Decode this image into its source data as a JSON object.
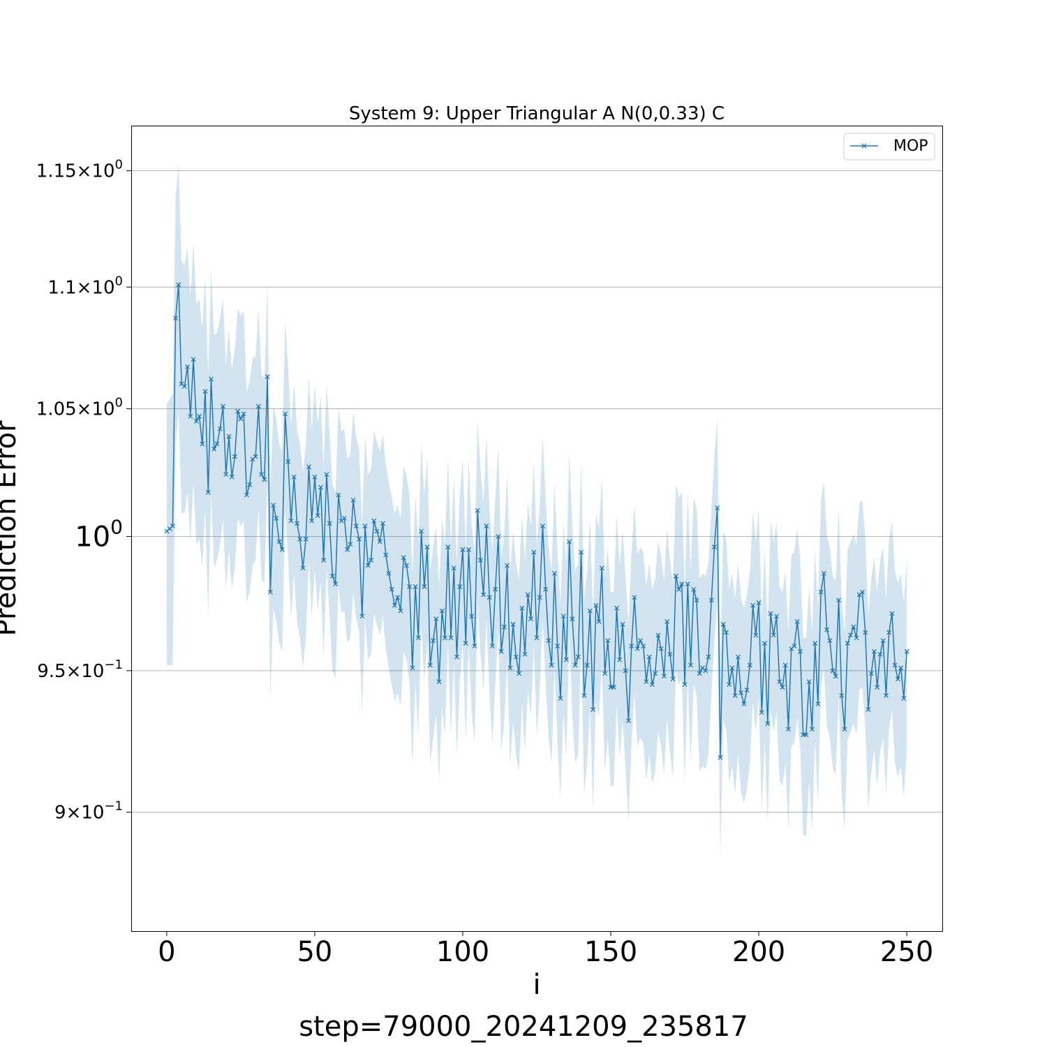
{
  "chart_data": {
    "type": "line",
    "title": "System 9: Upper Triangular A N(0,0.33) C",
    "xlabel": "i",
    "ylabel": "Prediction Error",
    "caption": "step=79000_20241209_235817",
    "yscale": "log",
    "xlim": [
      -12,
      262
    ],
    "ylim": [
      0.86,
      1.17
    ],
    "grid": "y-major",
    "legend": {
      "placement": "top-right",
      "entries": [
        "MOP"
      ]
    },
    "x_ticks": [
      {
        "value": 0,
        "label": "0"
      },
      {
        "value": 50,
        "label": "50"
      },
      {
        "value": 100,
        "label": "100"
      },
      {
        "value": 150,
        "label": "150"
      },
      {
        "value": 200,
        "label": "200"
      },
      {
        "value": 250,
        "label": "250"
      }
    ],
    "y_ticks": [
      {
        "value": 0.9,
        "mantissa": "9",
        "exponent": "−1"
      },
      {
        "value": 0.95,
        "mantissa": "9.5",
        "exponent": "−1"
      },
      {
        "value": 1.0,
        "mantissa": "",
        "exponent": "0"
      },
      {
        "value": 1.05,
        "mantissa": "1.05",
        "exponent": "0"
      },
      {
        "value": 1.1,
        "mantissa": "1.1",
        "exponent": "0"
      },
      {
        "value": 1.15,
        "mantissa": "1.15",
        "exponent": "0"
      }
    ],
    "series": [
      {
        "name": "MOP",
        "color": "#1f77b4",
        "band_color": "#1f77b4",
        "x_start": 0,
        "x_step": 1,
        "values": [
          1.002,
          1.003,
          1.004,
          1.087,
          1.101,
          1.06,
          1.059,
          1.067,
          1.047,
          1.07,
          1.045,
          1.047,
          1.036,
          1.057,
          1.017,
          1.062,
          1.034,
          1.036,
          1.042,
          1.051,
          1.024,
          1.039,
          1.023,
          1.031,
          1.049,
          1.046,
          1.048,
          1.016,
          1.02,
          1.03,
          1.031,
          1.051,
          1.024,
          1.022,
          1.063,
          0.979,
          1.012,
          1.007,
          0.998,
          0.995,
          1.048,
          1.029,
          1.006,
          1.023,
          1.005,
          0.999,
          0.988,
          0.999,
          1.027,
          1.006,
          1.023,
          1.008,
          1.019,
          0.991,
          1.024,
          1.005,
          0.985,
          0.982,
          1.016,
          1.006,
          1.007,
          0.995,
          0.997,
          1.014,
          1.004,
          0.999,
          0.97,
          1.004,
          0.989,
          0.991,
          1.006,
          1.002,
          0.998,
          1.005,
          0.993,
          0.986,
          0.98,
          0.974,
          0.977,
          0.972,
          0.992,
          0.989,
          0.981,
          0.951,
          0.981,
          0.962,
          1.002,
          0.981,
          0.996,
          0.952,
          0.961,
          0.969,
          0.946,
          0.972,
          0.962,
          0.996,
          0.962,
          0.988,
          0.955,
          0.981,
          0.995,
          0.96,
          0.995,
          0.97,
          0.959,
          1.01,
          0.991,
          0.978,
          1.004,
          0.977,
          0.959,
          0.98,
          1.0,
          0.957,
          0.966,
          0.989,
          0.951,
          0.967,
          0.955,
          0.949,
          0.973,
          0.956,
          0.978,
          0.969,
          0.994,
          0.962,
          0.977,
          1.004,
          0.98,
          0.961,
          0.952,
          0.986,
          0.959,
          0.94,
          0.97,
          0.954,
          0.998,
          0.969,
          0.952,
          0.955,
          0.994,
          0.941,
          0.952,
          0.972,
          0.936,
          0.974,
          0.968,
          0.988,
          0.949,
          0.961,
          0.944,
          0.944,
          0.973,
          0.954,
          0.967,
          0.95,
          0.932,
          0.959,
          0.977,
          0.958,
          0.961,
          0.959,
          0.946,
          0.955,
          0.945,
          0.949,
          0.963,
          0.958,
          0.948,
          0.968,
          0.956,
          0.947,
          0.985,
          0.98,
          0.982,
          0.945,
          0.982,
          0.952,
          0.98,
          0.976,
          0.949,
          0.951,
          0.95,
          0.955,
          0.976,
          0.996,
          1.011,
          0.919,
          0.967,
          0.964,
          0.945,
          0.951,
          0.941,
          0.955,
          0.942,
          0.938,
          0.943,
          0.952,
          0.974,
          0.963,
          0.975,
          0.935,
          0.96,
          0.931,
          0.971,
          0.963,
          0.97,
          0.946,
          0.944,
          0.952,
          0.929,
          0.958,
          0.959,
          0.968,
          0.957,
          0.927,
          0.927,
          0.946,
          0.929,
          0.96,
          0.938,
          0.979,
          0.986,
          0.965,
          0.961,
          0.95,
          0.948,
          0.976,
          0.941,
          0.929,
          0.96,
          0.963,
          0.966,
          0.962,
          0.978,
          0.979,
          0.964,
          0.936,
          0.949,
          0.957,
          0.944,
          0.956,
          0.961,
          0.941,
          0.964,
          0.971,
          0.952,
          0.947,
          0.951,
          0.94,
          0.957
        ],
        "band_half_width": [
          0.05,
          0.051,
          0.052,
          0.052,
          0.052,
          0.051,
          0.05,
          0.05,
          0.049,
          0.049,
          0.048,
          0.048,
          0.047,
          0.047,
          0.047,
          0.046,
          0.046,
          0.045,
          0.045,
          0.044,
          0.044,
          0.044,
          0.043,
          0.043,
          0.042,
          0.042,
          0.042,
          0.041,
          0.041,
          0.041,
          0.04,
          0.04,
          0.04,
          0.04,
          0.039,
          0.039,
          0.039,
          0.039,
          0.038,
          0.038,
          0.038,
          0.038,
          0.037,
          0.037,
          0.037,
          0.037,
          0.037,
          0.037,
          0.036,
          0.036,
          0.036,
          0.036,
          0.036,
          0.036,
          0.036,
          0.035,
          0.035,
          0.035,
          0.035,
          0.035,
          0.035,
          0.035,
          0.035,
          0.035,
          0.035,
          0.035,
          0.035,
          0.035,
          0.035,
          0.035,
          0.035,
          0.035,
          0.035,
          0.035,
          0.035,
          0.035,
          0.035,
          0.035,
          0.035,
          0.035,
          0.035,
          0.035,
          0.035,
          0.035,
          0.035,
          0.035,
          0.035,
          0.035,
          0.035,
          0.035,
          0.035,
          0.035,
          0.035,
          0.035,
          0.035,
          0.035,
          0.035,
          0.035,
          0.035,
          0.035,
          0.035,
          0.035,
          0.035,
          0.035,
          0.035,
          0.035,
          0.035,
          0.035,
          0.035,
          0.035,
          0.035,
          0.035,
          0.035,
          0.035,
          0.035,
          0.035,
          0.035,
          0.035,
          0.035,
          0.035,
          0.035,
          0.035,
          0.035,
          0.035,
          0.035,
          0.035,
          0.035,
          0.035,
          0.035,
          0.035,
          0.035,
          0.035,
          0.035,
          0.035,
          0.035,
          0.035,
          0.035,
          0.035,
          0.035,
          0.035,
          0.035,
          0.035,
          0.035,
          0.035,
          0.035,
          0.035,
          0.035,
          0.035,
          0.035,
          0.035,
          0.035,
          0.035,
          0.035,
          0.035,
          0.035,
          0.035,
          0.035,
          0.035,
          0.035,
          0.035,
          0.035,
          0.035,
          0.035,
          0.035,
          0.035,
          0.035,
          0.035,
          0.035,
          0.035,
          0.035,
          0.035,
          0.035,
          0.035,
          0.035,
          0.035,
          0.035,
          0.035,
          0.035,
          0.035,
          0.035,
          0.035,
          0.035,
          0.035,
          0.035,
          0.035,
          0.035,
          0.035,
          0.035,
          0.035,
          0.035,
          0.035,
          0.035,
          0.035,
          0.035,
          0.035,
          0.035,
          0.035,
          0.035,
          0.035,
          0.035,
          0.035,
          0.035,
          0.035,
          0.035,
          0.035,
          0.035,
          0.035,
          0.035,
          0.035,
          0.035,
          0.035,
          0.035,
          0.035,
          0.035,
          0.035,
          0.035,
          0.035,
          0.035,
          0.035,
          0.035,
          0.035,
          0.035,
          0.035,
          0.035,
          0.035,
          0.035,
          0.035,
          0.035,
          0.035,
          0.035,
          0.035,
          0.035,
          0.035,
          0.035,
          0.035,
          0.035,
          0.035,
          0.035,
          0.035,
          0.035,
          0.035,
          0.035,
          0.035,
          0.035,
          0.035,
          0.035,
          0.035,
          0.035,
          0.035,
          0.035,
          0.035,
          0.035,
          0.035,
          0.035,
          0.035,
          0.035,
          0.035
        ]
      }
    ]
  }
}
